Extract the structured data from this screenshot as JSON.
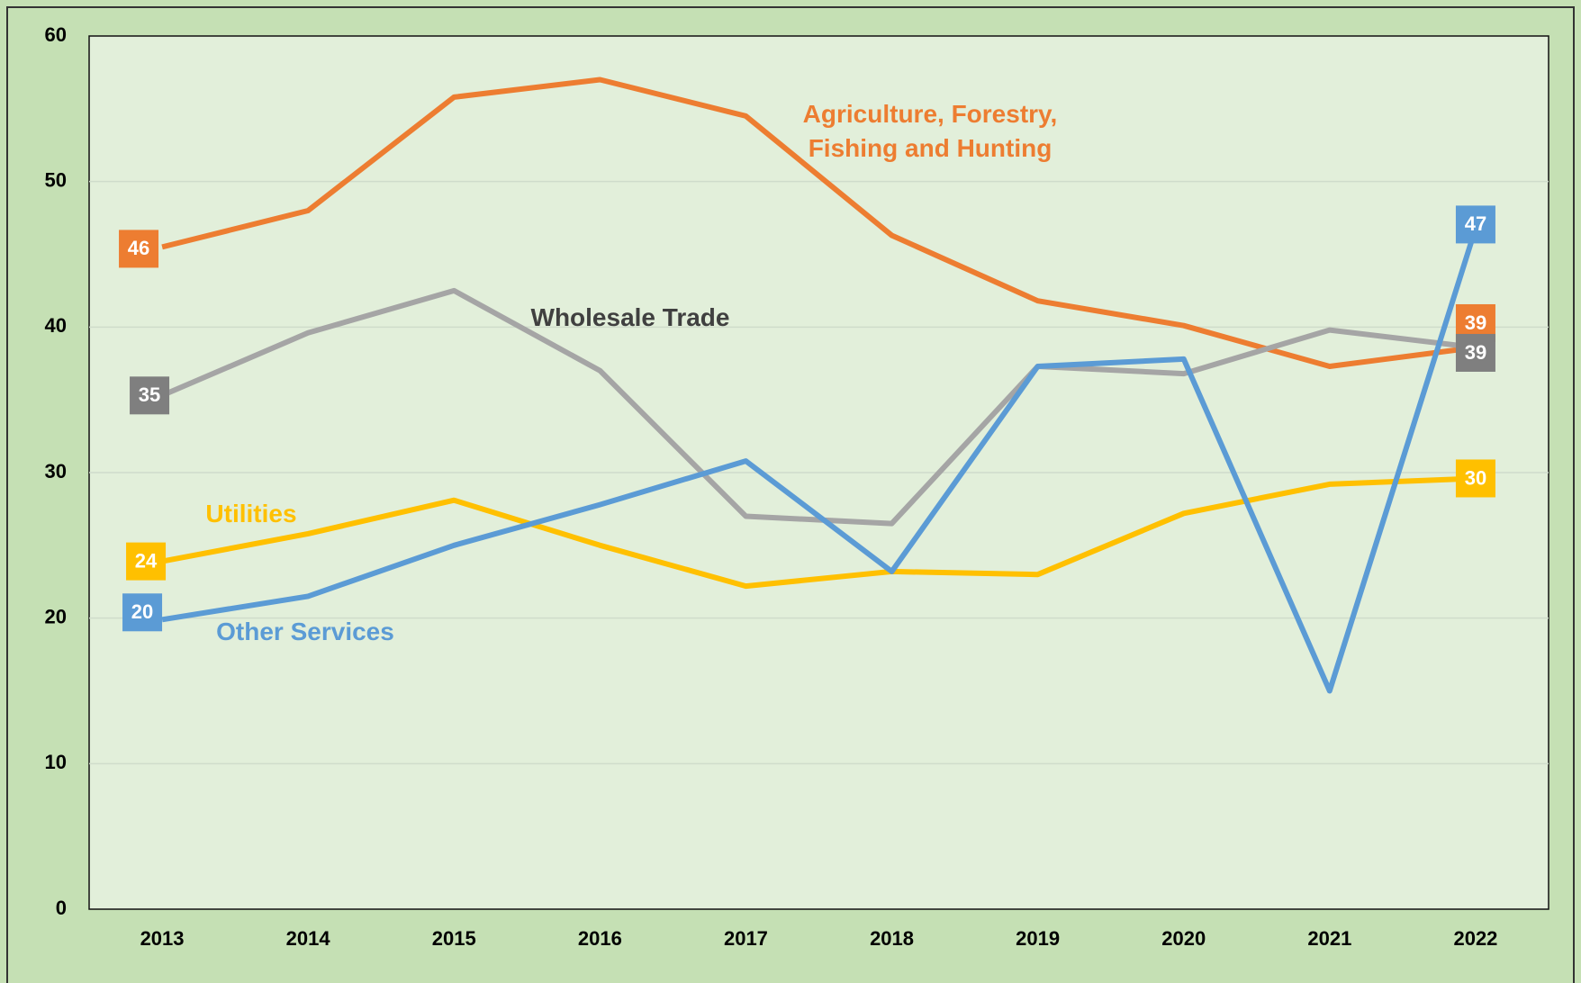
{
  "chart_data": {
    "type": "line",
    "categories": [
      "2013",
      "2014",
      "2015",
      "2016",
      "2017",
      "2018",
      "2019",
      "2020",
      "2021",
      "2022"
    ],
    "series": [
      {
        "name": "Agriculture, Forestry, Fishing and Hunting",
        "color": "#ed7d31",
        "values": [
          45.5,
          48.0,
          55.8,
          57.0,
          54.5,
          46.3,
          41.8,
          40.1,
          37.3,
          38.6
        ],
        "value_labels": [
          "46",
          null,
          null,
          null,
          null,
          null,
          null,
          null,
          null,
          "39"
        ]
      },
      {
        "name": "Wholesale Trade",
        "color": "#a5a5a5",
        "values": [
          35.3,
          39.6,
          42.5,
          37.0,
          27.0,
          26.5,
          37.3,
          36.8,
          39.8,
          38.6
        ],
        "value_labels": [
          "35",
          null,
          null,
          null,
          null,
          null,
          null,
          null,
          null,
          "39"
        ]
      },
      {
        "name": "Utilities",
        "color": "#ffc000",
        "values": [
          23.9,
          25.8,
          28.1,
          25.0,
          22.2,
          23.2,
          23.0,
          27.2,
          29.2,
          29.6
        ],
        "value_labels": [
          "24",
          null,
          null,
          null,
          null,
          null,
          null,
          null,
          null,
          "30"
        ]
      },
      {
        "name": "Other Services",
        "color": "#5b9bd5",
        "values": [
          19.9,
          21.5,
          25.0,
          27.8,
          30.8,
          23.2,
          37.3,
          37.8,
          15.0,
          46.8
        ],
        "value_labels": [
          "20",
          null,
          null,
          null,
          null,
          null,
          null,
          null,
          null,
          "47"
        ]
      }
    ],
    "ylim": [
      0,
      60
    ],
    "yticks": [
      0,
      10,
      20,
      30,
      40,
      50,
      60
    ],
    "grid": true
  }
}
